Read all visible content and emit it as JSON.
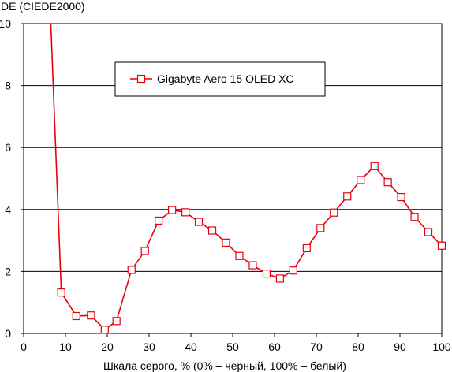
{
  "chart_data": {
    "type": "line",
    "title": "",
    "ylabel": "DE (CIEDE2000)",
    "xlabel": "Шкала серого, % (0% – черный, 100% – белый)",
    "xlim": [
      0,
      100
    ],
    "ylim": [
      0,
      10
    ],
    "xticks": [
      0,
      10,
      20,
      30,
      40,
      50,
      60,
      70,
      80,
      90,
      100
    ],
    "yticks": [
      0,
      2,
      4,
      6,
      8,
      10
    ],
    "x_tick_labels": [
      "0",
      "10",
      "20",
      "30",
      "40",
      "50",
      "60",
      "70",
      "80",
      "90",
      "100"
    ],
    "y_tick_labels": [
      "0",
      "2",
      "4",
      "6",
      "8",
      "10"
    ],
    "grid": "horizontal",
    "legend_position": "top-center",
    "colors": {
      "series": "#e8000b",
      "grid": "#000000",
      "marker_fill": "#ffffff"
    },
    "series": [
      {
        "name": "Gigabyte Aero 15 OLED XC",
        "points": [
          [
            6.5,
            10.0
          ],
          [
            9.0,
            1.32
          ],
          [
            12.6,
            0.56
          ],
          [
            16.1,
            0.58
          ],
          [
            19.4,
            0.12
          ],
          [
            22.2,
            0.4
          ],
          [
            25.8,
            2.05
          ],
          [
            29.0,
            2.66
          ],
          [
            32.3,
            3.64
          ],
          [
            35.5,
            3.98
          ],
          [
            38.7,
            3.91
          ],
          [
            41.9,
            3.6
          ],
          [
            45.1,
            3.32
          ],
          [
            48.4,
            2.93
          ],
          [
            51.6,
            2.5
          ],
          [
            54.8,
            2.2
          ],
          [
            58.1,
            1.93
          ],
          [
            61.3,
            1.77
          ],
          [
            64.5,
            2.03
          ],
          [
            67.7,
            2.75
          ],
          [
            71.0,
            3.4
          ],
          [
            74.2,
            3.9
          ],
          [
            77.4,
            4.42
          ],
          [
            80.6,
            4.95
          ],
          [
            83.9,
            5.4
          ],
          [
            87.1,
            4.88
          ],
          [
            90.3,
            4.4
          ],
          [
            93.5,
            3.76
          ],
          [
            96.8,
            3.27
          ],
          [
            100.0,
            2.83
          ]
        ],
        "markers_from_index": 1
      }
    ]
  }
}
